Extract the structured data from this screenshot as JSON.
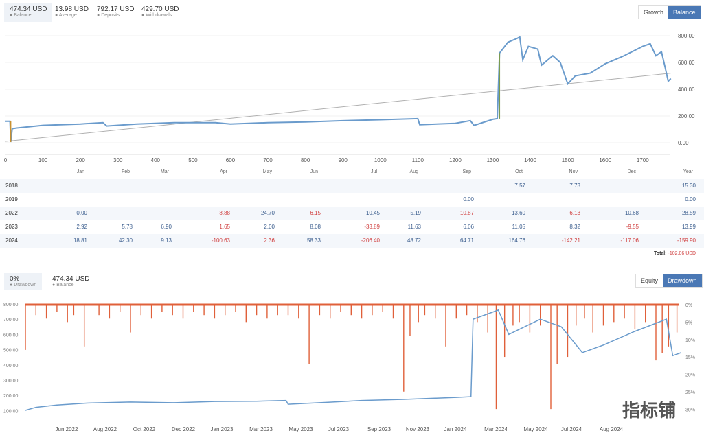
{
  "top_stats": [
    {
      "value": "474.34 USD",
      "label": "Balance",
      "active": true
    },
    {
      "value": "13.98 USD",
      "label": "Average"
    },
    {
      "value": "792.17 USD",
      "label": "Deposits"
    },
    {
      "value": "429.70 USD",
      "label": "Withdrawals"
    }
  ],
  "top_toggle": {
    "growth": "Growth",
    "balance": "Balance",
    "selected": "Balance"
  },
  "bottom_stats": [
    {
      "value": "0%",
      "label": "Drawdown",
      "active": true
    },
    {
      "value": "474.34 USD",
      "label": "Balance"
    }
  ],
  "bottom_toggle": {
    "equity": "Equity",
    "drawdown": "Drawdown",
    "selected": "Drawdown"
  },
  "colors": {
    "balance": "#6a9bcc",
    "trend": "#b0b0b0",
    "drawdown": "#e0603a",
    "deposit": "#c89030",
    "accent": "#4a78b5",
    "negative": "#d04040"
  },
  "chart_data": [
    {
      "type": "line",
      "xlim": [
        0,
        1770
      ],
      "ylim": [
        0,
        800
      ],
      "xticks": [
        0,
        100,
        200,
        300,
        400,
        500,
        600,
        700,
        800,
        900,
        1000,
        1100,
        1200,
        1300,
        1400,
        1500,
        1600,
        1700
      ],
      "yticks": [
        "800.00",
        "600.00",
        "400.00",
        "200.00",
        "0.00"
      ],
      "series": [
        {
          "points": [
            [
              0,
              160
            ],
            [
              12,
              160
            ],
            [
              14,
              5
            ],
            [
              18,
              105
            ],
            [
              30,
              110
            ],
            [
              100,
              130
            ],
            [
              200,
              140
            ],
            [
              260,
              150
            ],
            [
              270,
              125
            ],
            [
              350,
              140
            ],
            [
              450,
              150
            ],
            [
              500,
              150
            ],
            [
              560,
              150
            ],
            [
              600,
              140
            ],
            [
              700,
              150
            ],
            [
              800,
              155
            ],
            [
              900,
              165
            ],
            [
              1000,
              172
            ],
            [
              1100,
              180
            ],
            [
              1105,
              135
            ],
            [
              1200,
              145
            ],
            [
              1240,
              165
            ],
            [
              1250,
              130
            ],
            [
              1300,
              175
            ],
            [
              1312,
              180
            ],
            [
              1318,
              670
            ],
            [
              1340,
              750
            ],
            [
              1365,
              780
            ],
            [
              1372,
              790
            ],
            [
              1380,
              620
            ],
            [
              1395,
              720
            ],
            [
              1420,
              700
            ],
            [
              1430,
              580
            ],
            [
              1460,
              650
            ],
            [
              1480,
              600
            ],
            [
              1500,
              440
            ],
            [
              1520,
              500
            ],
            [
              1560,
              520
            ],
            [
              1600,
              590
            ],
            [
              1650,
              650
            ],
            [
              1700,
              720
            ],
            [
              1720,
              740
            ],
            [
              1735,
              650
            ],
            [
              1750,
              680
            ],
            [
              1760,
              560
            ],
            [
              1768,
              460
            ],
            [
              1775,
              480
            ]
          ]
        },
        {
          "points": [
            [
              0,
              10
            ],
            [
              1775,
              520
            ]
          ]
        }
      ]
    },
    {
      "type": "line",
      "yticks_left": [
        "800.00",
        "700.00",
        "600.00",
        "500.00",
        "400.00",
        "300.00",
        "200.00",
        "100.00"
      ],
      "yticks_right": [
        "0%",
        "5%",
        "10%",
        "15%",
        "20%",
        "25%",
        "30%"
      ],
      "xticks": [
        "Jun 2022",
        "Aug 2022",
        "Oct 2022",
        "Dec 2022",
        "Jan 2023",
        "Mar 2023",
        "May 2023",
        "Jul 2023",
        "Sep 2023",
        "Nov 2023",
        "Jan 2024",
        "Mar 2024",
        "May 2024",
        "Jul 2024",
        "Aug 2024"
      ],
      "balance": [
        [
          0,
          100
        ],
        [
          0.5,
          120
        ],
        [
          1.5,
          135
        ],
        [
          3,
          148
        ],
        [
          5,
          155
        ],
        [
          7,
          150
        ],
        [
          9,
          158
        ],
        [
          11,
          160
        ],
        [
          12.4,
          165
        ],
        [
          12.5,
          140
        ],
        [
          14,
          150
        ],
        [
          16,
          165
        ],
        [
          18,
          172
        ],
        [
          19.5,
          180
        ],
        [
          20.5,
          185
        ],
        [
          21.2,
          190
        ],
        [
          21.3,
          700
        ],
        [
          22.5,
          760
        ],
        [
          23,
          600
        ],
        [
          24.5,
          700
        ],
        [
          25.5,
          650
        ],
        [
          26.5,
          480
        ],
        [
          27.5,
          530
        ],
        [
          29,
          620
        ],
        [
          30.5,
          700
        ],
        [
          30.8,
          460
        ],
        [
          31.2,
          480
        ]
      ],
      "drawdown": [
        [
          0,
          13
        ],
        [
          0.5,
          3
        ],
        [
          1,
          4
        ],
        [
          1.5,
          2
        ],
        [
          2,
          5
        ],
        [
          2.3,
          3
        ],
        [
          2.8,
          12
        ],
        [
          3.5,
          3
        ],
        [
          4,
          4
        ],
        [
          4.5,
          2
        ],
        [
          5,
          8
        ],
        [
          5.5,
          3
        ],
        [
          6,
          4
        ],
        [
          6.5,
          2
        ],
        [
          7,
          3
        ],
        [
          7.5,
          4
        ],
        [
          8,
          2
        ],
        [
          8.5,
          3
        ],
        [
          9,
          4
        ],
        [
          9.5,
          3
        ],
        [
          10,
          2
        ],
        [
          10.5,
          5
        ],
        [
          11,
          3
        ],
        [
          11.5,
          4
        ],
        [
          12,
          3
        ],
        [
          12.5,
          3
        ],
        [
          13,
          4
        ],
        [
          13.5,
          17
        ],
        [
          14,
          3
        ],
        [
          14.5,
          4
        ],
        [
          15,
          2
        ],
        [
          15.5,
          3
        ],
        [
          16,
          4
        ],
        [
          16.5,
          3
        ],
        [
          17,
          2
        ],
        [
          17.5,
          4
        ],
        [
          18,
          25
        ],
        [
          18.3,
          9
        ],
        [
          18.7,
          5
        ],
        [
          19,
          3
        ],
        [
          19.5,
          4
        ],
        [
          20,
          12
        ],
        [
          20.5,
          4
        ],
        [
          21,
          3
        ],
        [
          21.5,
          5
        ],
        [
          22,
          8
        ],
        [
          22.4,
          30
        ],
        [
          22.8,
          15
        ],
        [
          23.2,
          6
        ],
        [
          23.5,
          5
        ],
        [
          24,
          8
        ],
        [
          24.5,
          6
        ],
        [
          25,
          30
        ],
        [
          25.3,
          17
        ],
        [
          25.8,
          15
        ],
        [
          26.2,
          6
        ],
        [
          26.6,
          4
        ],
        [
          27,
          8
        ],
        [
          27.5,
          6
        ],
        [
          28,
          5
        ],
        [
          28.5,
          4
        ],
        [
          29,
          7
        ],
        [
          29.5,
          5
        ],
        [
          30,
          16
        ],
        [
          30.3,
          14
        ],
        [
          30.6,
          12
        ],
        [
          31,
          8
        ]
      ]
    }
  ],
  "monthly_table": {
    "headers": [
      "Jan",
      "Feb",
      "Mar",
      "Apr",
      "May",
      "Jun",
      "Jul",
      "Aug",
      "Sep",
      "Oct",
      "Nov",
      "Dec",
      "Year"
    ],
    "rows": [
      {
        "year": "2018",
        "cells": [
          "",
          "",
          "",
          "",
          "",
          "",
          "",
          "",
          "",
          "7.57",
          "7.73",
          "",
          "15.30"
        ]
      },
      {
        "year": "2019",
        "cells": [
          "",
          "",
          "",
          "",
          "",
          "",
          "",
          "",
          "0.00",
          "",
          "",
          "",
          "0.00"
        ]
      },
      {
        "year": "2022",
        "cells": [
          "0.00",
          "",
          "",
          "8.88",
          "24.70",
          "6.15",
          "10.45",
          "5.19",
          "10.87",
          "13.60",
          "6.13",
          "10.68",
          "28.59"
        ],
        "neg": [
          3,
          5,
          8,
          10
        ]
      },
      {
        "year": "2023",
        "cells": [
          "2.92",
          "5.78",
          "6.90",
          "1.65",
          "2.00",
          "8.08",
          "-33.89",
          "11.63",
          "6.06",
          "11.05",
          "8.32",
          "-9.55",
          "13.99"
        ],
        "neg": [
          3,
          6,
          11
        ]
      },
      {
        "year": "2024",
        "cells": [
          "18.81",
          "42.30",
          "9.13",
          "-100.63",
          "2.36",
          "58.33",
          "-206.40",
          "48.72",
          "64.71",
          "164.76",
          "-142.21",
          "-117.06",
          "-159.90"
        ],
        "neg": [
          3,
          4,
          6,
          10,
          11,
          12
        ]
      }
    ],
    "total_label": "Total:",
    "total_value": "-102.06 USD"
  },
  "watermark": "指标铺"
}
